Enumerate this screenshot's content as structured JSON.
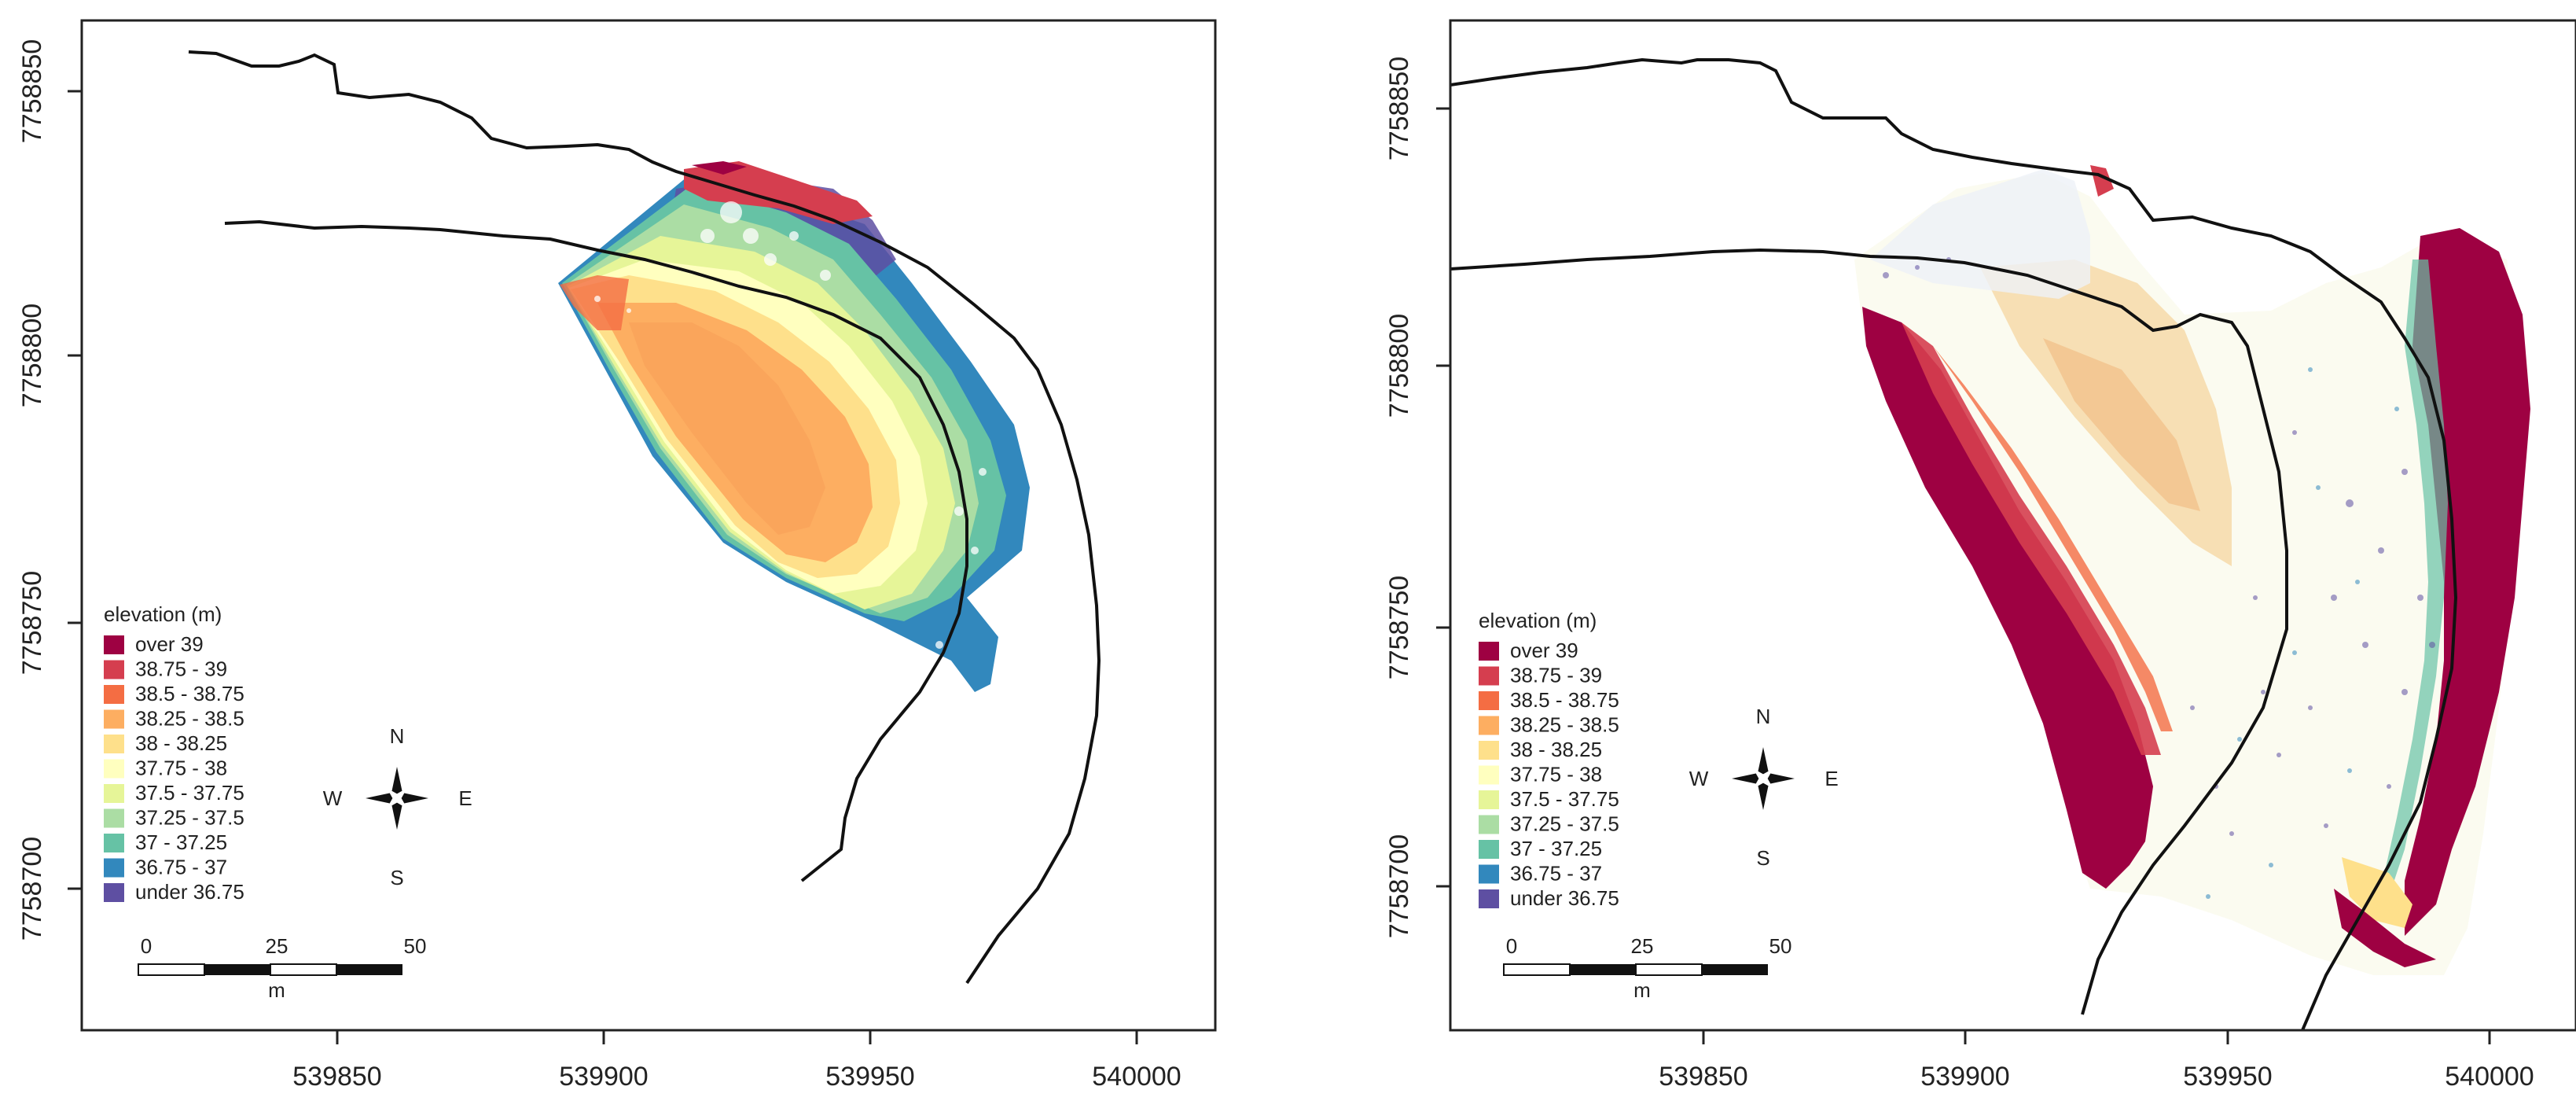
{
  "maps": [
    {
      "id": "left",
      "x_ticks": [
        "539850",
        "539900",
        "539950",
        "540000"
      ],
      "y_ticks": [
        "7758850",
        "7758800",
        "7758750",
        "7758700"
      ],
      "legend": {
        "title": "elevation (m)",
        "items": [
          {
            "label": "over 39",
            "color": "#9e0142"
          },
          {
            "label": "38.75 - 39",
            "color": "#d53e4f"
          },
          {
            "label": "38.5 - 38.75",
            "color": "#f46d43"
          },
          {
            "label": "38.25 - 38.5",
            "color": "#fdae61"
          },
          {
            "label": "38 - 38.25",
            "color": "#fee08b"
          },
          {
            "label": "37.75 - 38",
            "color": "#ffffbf"
          },
          {
            "label": "37.5 - 37.75",
            "color": "#e6f598"
          },
          {
            "label": "37.25 - 37.5",
            "color": "#abdda4"
          },
          {
            "label": "37 - 37.25",
            "color": "#66c2a5"
          },
          {
            "label": "36.75 - 37",
            "color": "#3288bd"
          },
          {
            "label": "under 36.75",
            "color": "#5e4fa2"
          }
        ]
      },
      "compass": {
        "n": "N",
        "s": "S",
        "e": "E",
        "w": "W"
      },
      "scale": {
        "labels": [
          "0",
          "25",
          "50"
        ],
        "unit": "m"
      }
    },
    {
      "id": "right",
      "x_ticks": [
        "539850",
        "539900",
        "539950",
        "540000"
      ],
      "y_ticks": [
        "7758850",
        "7758800",
        "7758750",
        "7758700"
      ],
      "legend": {
        "title": "elevation (m)",
        "items": [
          {
            "label": "over 39",
            "color": "#9e0142"
          },
          {
            "label": "38.75 - 39",
            "color": "#d53e4f"
          },
          {
            "label": "38.5 - 38.75",
            "color": "#f46d43"
          },
          {
            "label": "38.25 - 38.5",
            "color": "#fdae61"
          },
          {
            "label": "38 - 38.25",
            "color": "#fee08b"
          },
          {
            "label": "37.75 - 38",
            "color": "#ffffbf"
          },
          {
            "label": "37.5 - 37.75",
            "color": "#e6f598"
          },
          {
            "label": "37.25 - 37.5",
            "color": "#abdda4"
          },
          {
            "label": "37 - 37.25",
            "color": "#66c2a5"
          },
          {
            "label": "36.75 - 37",
            "color": "#3288bd"
          },
          {
            "label": "under 36.75",
            "color": "#5e4fa2"
          }
        ]
      },
      "compass": {
        "n": "N",
        "s": "S",
        "e": "E",
        "w": "W"
      },
      "scale": {
        "labels": [
          "0",
          "25",
          "50"
        ],
        "unit": "m"
      }
    }
  ]
}
